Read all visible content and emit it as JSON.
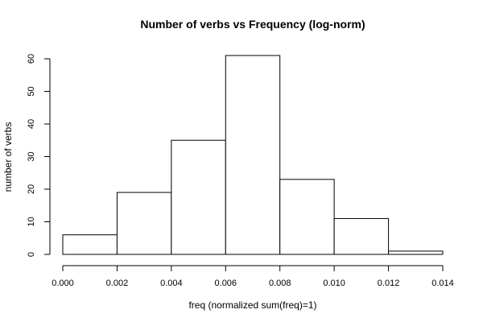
{
  "chart_data": {
    "type": "bar",
    "title": "Number of verbs vs Frequency (log-norm)",
    "xlabel": "freq (normalized sum(freq)=1)",
    "ylabel": "number of verbs",
    "bin_edges": [
      0.0,
      0.002,
      0.004,
      0.006,
      0.008,
      0.01,
      0.012,
      0.014
    ],
    "values": [
      6,
      19,
      35,
      61,
      23,
      11,
      1
    ],
    "xlim": [
      0.0,
      0.014
    ],
    "ylim": [
      0,
      60
    ],
    "x_ticks": [
      0.0,
      0.002,
      0.004,
      0.006,
      0.008,
      0.01,
      0.012,
      0.014
    ],
    "x_tick_labels": [
      "0.000",
      "0.002",
      "0.004",
      "0.006",
      "0.008",
      "0.010",
      "0.012",
      "0.014"
    ],
    "y_ticks": [
      0,
      10,
      20,
      30,
      40,
      50,
      60
    ],
    "y_tick_labels": [
      "0",
      "10",
      "20",
      "30",
      "40",
      "50",
      "60"
    ],
    "grid": false,
    "legend": "none",
    "colors": {
      "bar_fill": "#ffffff",
      "bar_stroke": "#000000",
      "axis": "#000000",
      "background": "#ffffff"
    }
  }
}
